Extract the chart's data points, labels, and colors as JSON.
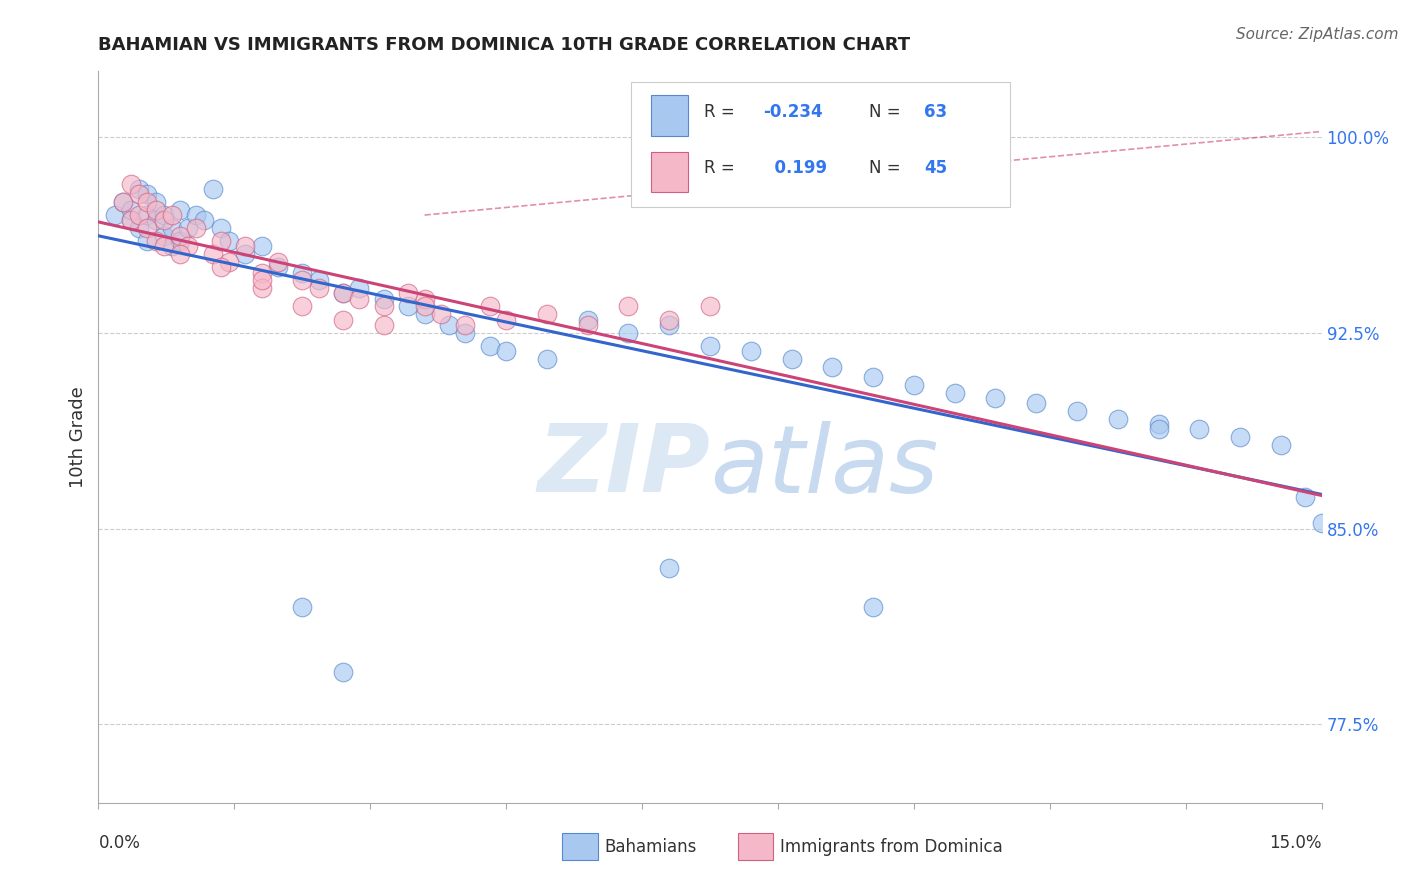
{
  "title": "BAHAMIAN VS IMMIGRANTS FROM DOMINICA 10TH GRADE CORRELATION CHART",
  "source": "Source: ZipAtlas.com",
  "ylabel": "10th Grade",
  "y_ticks_labels": [
    "77.5%",
    "85.0%",
    "92.5%",
    "100.0%"
  ],
  "y_ticks_vals": [
    0.775,
    0.85,
    0.925,
    1.0
  ],
  "xlim": [
    0.0,
    0.15
  ],
  "ylim": [
    0.745,
    1.025
  ],
  "blue_color": "#a8c8f0",
  "blue_edge": "#5588cc",
  "pink_color": "#f5b8c8",
  "pink_edge": "#d06080",
  "trend_blue": "#3366cc",
  "trend_pink": "#cc4477",
  "background": "#ffffff",
  "watermark_color": "#dde8f5",
  "r_blue": "-0.234",
  "n_blue": "63",
  "r_pink": "0.199",
  "n_pink": "45",
  "title_fontsize": 13,
  "tick_fontsize": 12,
  "ylabel_fontsize": 13,
  "source_fontsize": 11
}
